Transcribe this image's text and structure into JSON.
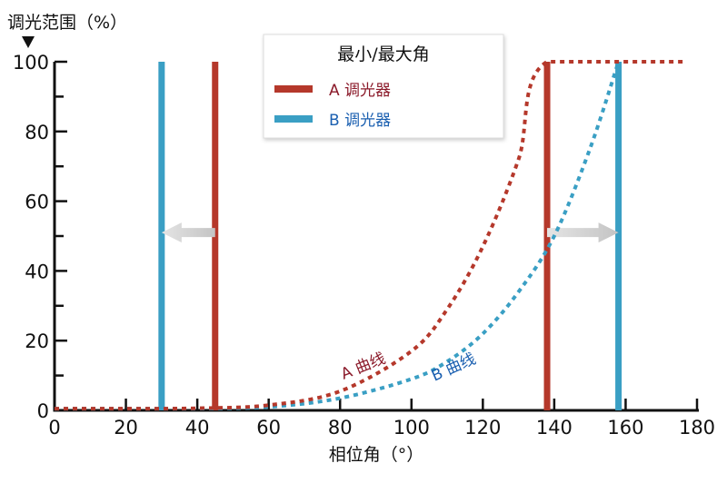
{
  "chart_data": {
    "type": "line",
    "title": "",
    "xlabel": "相位角（°）",
    "ylabel": "调光范围（%）",
    "xlim": [
      0,
      180
    ],
    "ylim": [
      0,
      100
    ],
    "x_ticks": [
      "0",
      "20",
      "40",
      "60",
      "80",
      "100",
      "120",
      "140",
      "160",
      "180"
    ],
    "y_ticks": [
      "0",
      "20",
      "40",
      "60",
      "80",
      "100"
    ],
    "grid": false,
    "legend": {
      "title": "最小/最大角",
      "position": "top-center",
      "entries": [
        {
          "label": "A 调光器",
          "color": "#b5382b",
          "text_color": "#8b1a2a"
        },
        {
          "label": "B 调光器",
          "color": "#3a9fc4",
          "text_color": "#1a5fb0"
        }
      ]
    },
    "series": [
      {
        "name": "A 曲线",
        "color": "#b5382b",
        "text_color": "#8b1a2a",
        "style": "dotted",
        "x": [
          0,
          20,
          40,
          60,
          80,
          100,
          110,
          120,
          130,
          138,
          176
        ],
        "y": [
          0.5,
          0.5,
          0.6,
          1.5,
          5.5,
          17,
          29,
          47,
          72,
          100,
          100
        ]
      },
      {
        "name": "B 曲线",
        "color": "#3a9fc4",
        "text_color": "#1a5fb0",
        "style": "dotted",
        "x": [
          0,
          20,
          40,
          60,
          80,
          100,
          110,
          120,
          130,
          140,
          150,
          158
        ],
        "y": [
          0.5,
          0.5,
          0.5,
          1,
          3.5,
          9,
          14,
          22,
          34,
          50,
          75,
          100
        ]
      }
    ],
    "vertical_markers": [
      {
        "dimmer": "B",
        "type": "min",
        "x": 30,
        "color": "#3a9fc4"
      },
      {
        "dimmer": "A",
        "type": "min",
        "x": 45,
        "color": "#b5382b"
      },
      {
        "dimmer": "A",
        "type": "max",
        "x": 138,
        "color": "#b5382b"
      },
      {
        "dimmer": "B",
        "type": "max",
        "x": 158,
        "color": "#3a9fc4"
      }
    ],
    "arrows": [
      {
        "from_x": 45,
        "to_x": 30,
        "y": 51
      },
      {
        "from_x": 138,
        "to_x": 158,
        "y": 51
      }
    ]
  }
}
